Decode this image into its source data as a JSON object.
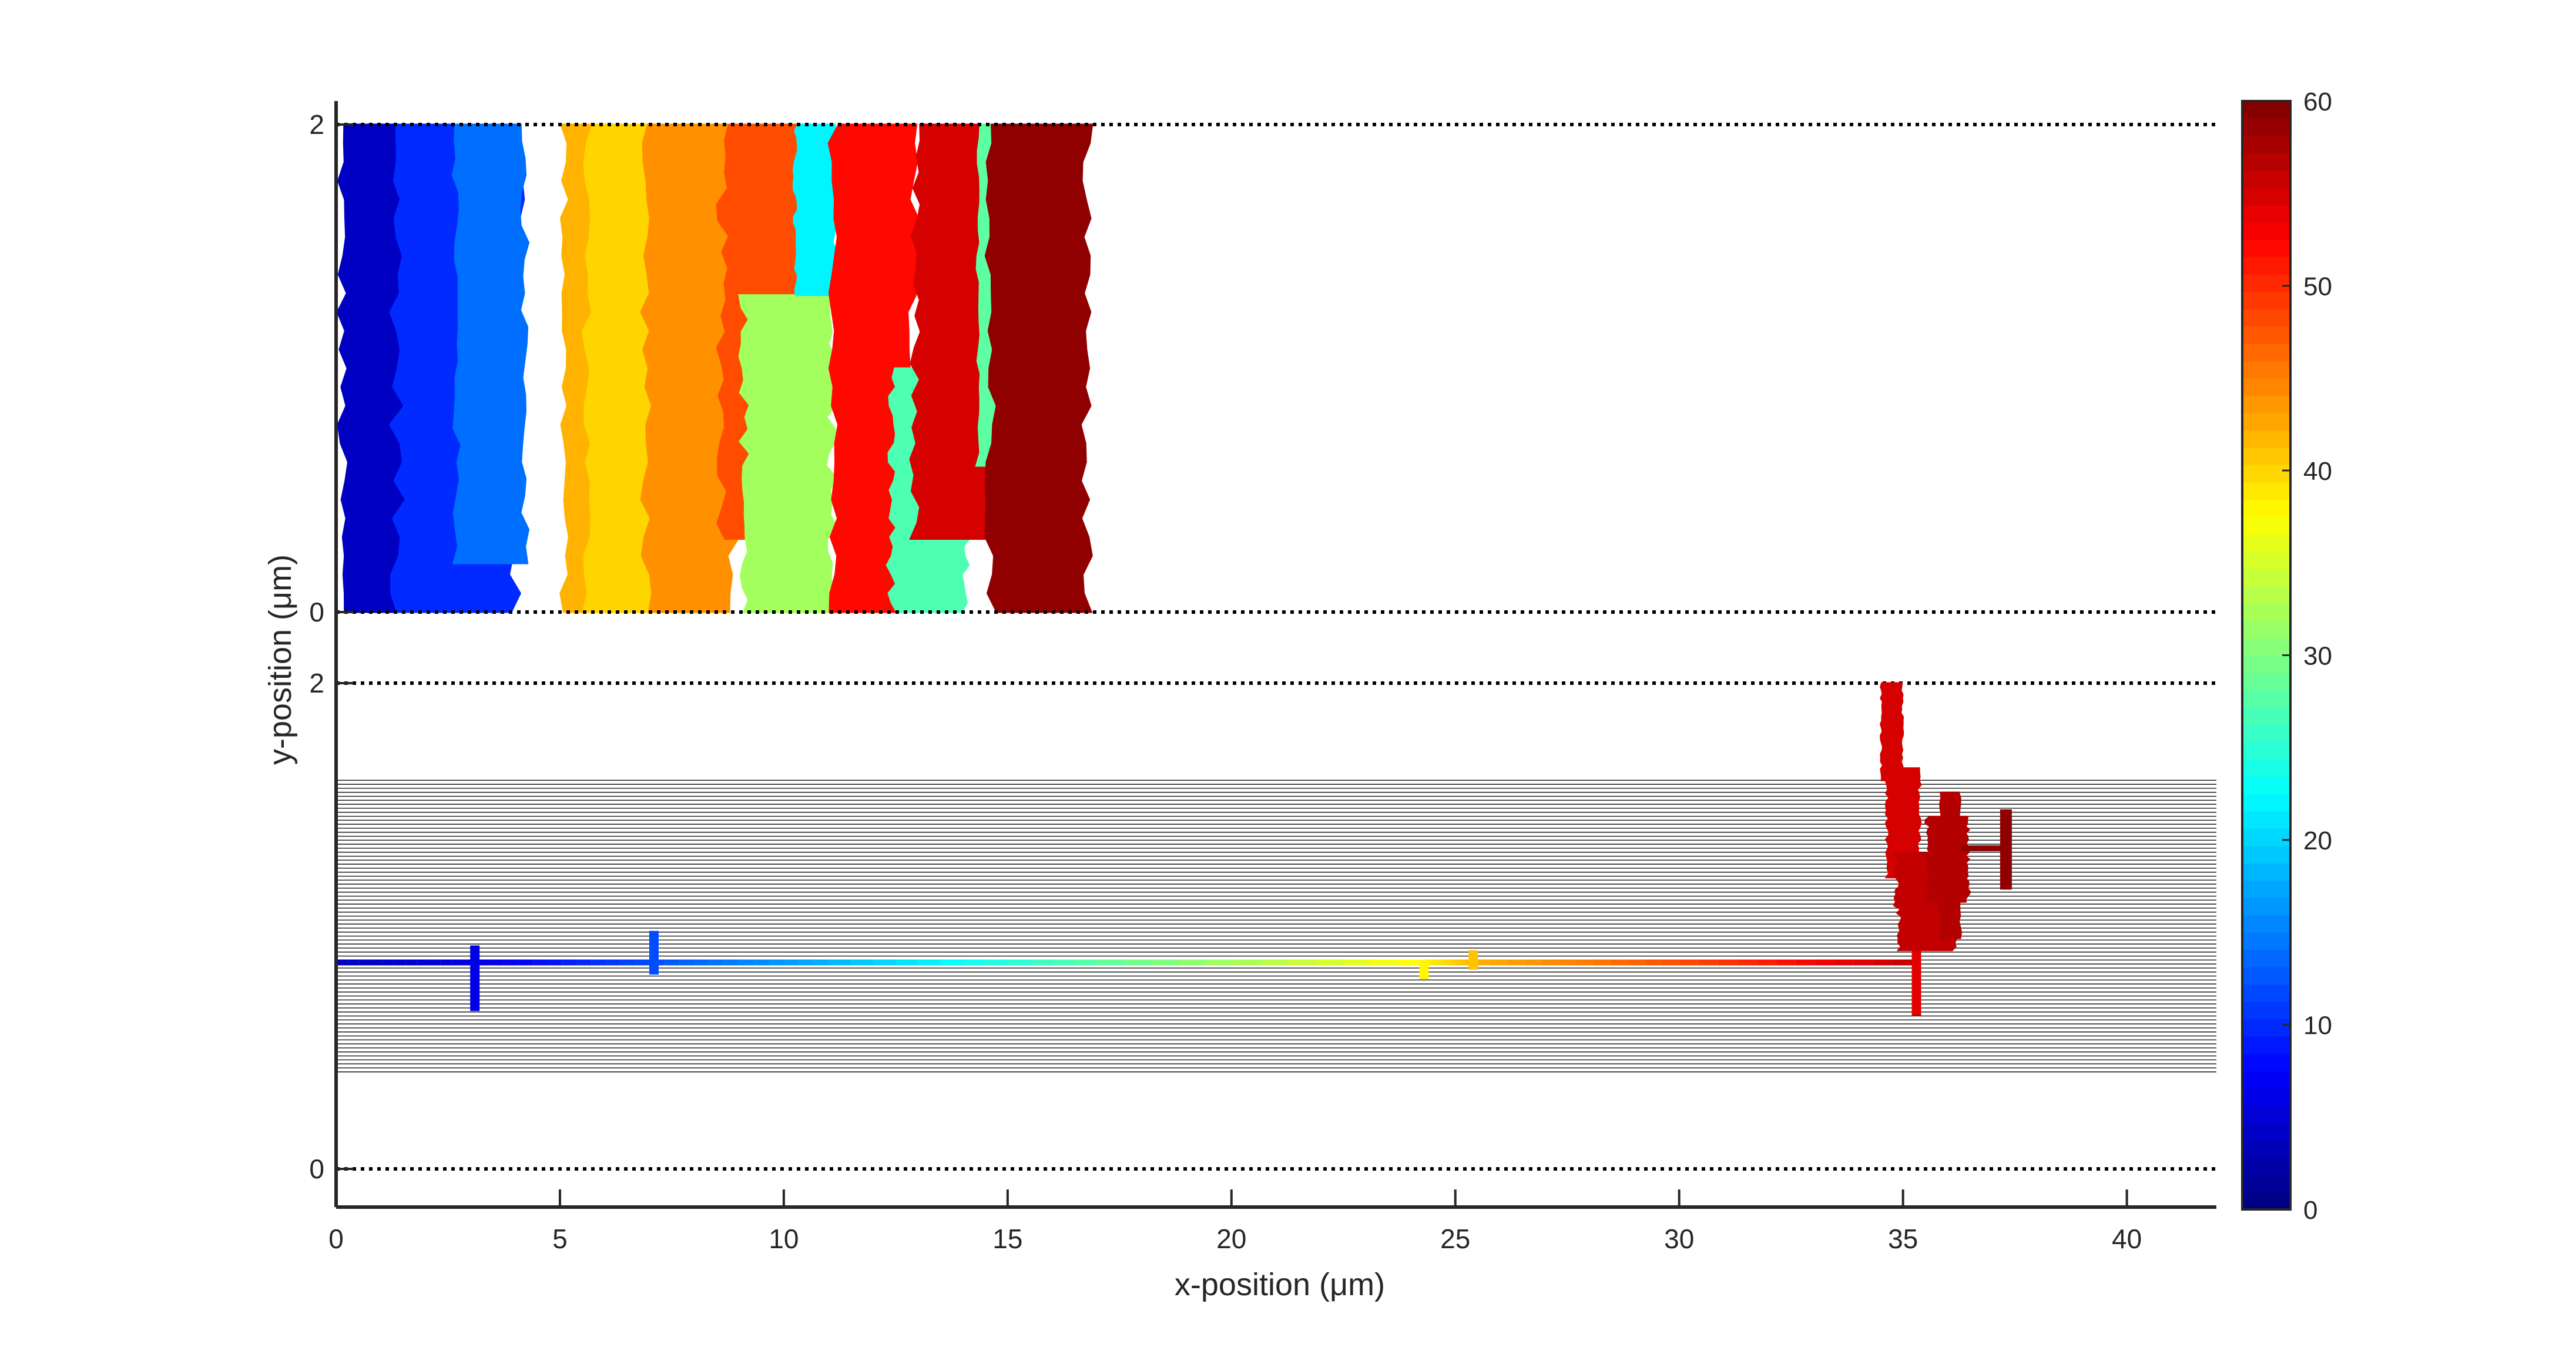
{
  "chart_data": {
    "type": "scatter",
    "xlabel": "x-position (μm)",
    "ylabel": "y-position (μm)",
    "xlim": [
      0,
      42
    ],
    "x_ticks": [
      "0",
      "5",
      "10",
      "15",
      "20",
      "25",
      "30",
      "35",
      "40"
    ],
    "panels": [
      {
        "name": "top",
        "ylim": [
          0,
          2
        ],
        "y_ticks": [
          "0",
          "2"
        ],
        "boundary_lines": [
          0,
          2
        ],
        "clusters": [
          {
            "x_start": 0.0,
            "x_end": 2.3,
            "y_start": 0.0,
            "y_end": 2.0,
            "value": 4
          },
          {
            "x_start": 1.2,
            "x_end": 4.2,
            "y_start": 0.0,
            "y_end": 2.0,
            "value": 10
          },
          {
            "x_start": 2.6,
            "x_end": 4.3,
            "y_start": 0.2,
            "y_end": 2.0,
            "value": 14
          },
          {
            "x_start": 5.0,
            "x_end": 6.8,
            "y_start": 0.0,
            "y_end": 2.0,
            "value": 42
          },
          {
            "x_start": 5.5,
            "x_end": 7.5,
            "y_start": 0.0,
            "y_end": 2.0,
            "value": 40
          },
          {
            "x_start": 6.8,
            "x_end": 9.0,
            "y_start": 0.0,
            "y_end": 2.0,
            "value": 44
          },
          {
            "x_start": 8.5,
            "x_end": 10.8,
            "y_start": 0.3,
            "y_end": 2.0,
            "value": 48
          },
          {
            "x_start": 9.0,
            "x_end": 11.2,
            "y_start": 0.0,
            "y_end": 1.3,
            "value": 32
          },
          {
            "x_start": 10.2,
            "x_end": 11.2,
            "y_start": 1.3,
            "y_end": 2.0,
            "value": 22
          },
          {
            "x_start": 11.0,
            "x_end": 13.0,
            "y_start": 0.0,
            "y_end": 2.0,
            "value": 52
          },
          {
            "x_start": 12.3,
            "x_end": 14.2,
            "y_start": 0.0,
            "y_end": 1.0,
            "value": 27
          },
          {
            "x_start": 12.8,
            "x_end": 15.0,
            "y_start": 0.3,
            "y_end": 2.0,
            "value": 55
          },
          {
            "x_start": 14.3,
            "x_end": 15.1,
            "y_start": 0.6,
            "y_end": 2.0,
            "value": 28
          },
          {
            "x_start": 14.5,
            "x_end": 16.9,
            "y_start": 0.0,
            "y_end": 2.0,
            "value": 59
          }
        ]
      },
      {
        "name": "bottom",
        "ylim": [
          0,
          2
        ],
        "y_ticks": [
          "0",
          "2"
        ],
        "boundary_lines": [
          0,
          2
        ],
        "hatched_band": [
          0.4,
          1.6
        ],
        "track": [
          {
            "x": 0.0,
            "y": 0.85,
            "value": 4
          },
          {
            "x": 3.1,
            "y": 0.85,
            "value": 6
          },
          {
            "x": 7.0,
            "y": 0.85,
            "value": 12
          },
          {
            "x": 11.0,
            "y": 0.85,
            "value": 18
          },
          {
            "x": 17.0,
            "y": 0.85,
            "value": 28
          },
          {
            "x": 24.3,
            "y": 0.85,
            "value": 38
          },
          {
            "x": 25.4,
            "y": 0.85,
            "value": 42
          },
          {
            "x": 30.0,
            "y": 0.85,
            "value": 48
          },
          {
            "x": 35.2,
            "y": 0.85,
            "value": 56
          }
        ],
        "spurs": [
          {
            "x": 3.1,
            "y_min": 0.65,
            "y_max": 0.92,
            "value": 6
          },
          {
            "x": 7.1,
            "y_min": 0.8,
            "y_max": 0.98,
            "value": 12
          },
          {
            "x": 24.3,
            "y_min": 0.78,
            "y_max": 0.86,
            "value": 38
          },
          {
            "x": 25.4,
            "y_min": 0.82,
            "y_max": 0.9,
            "value": 41
          },
          {
            "x": 35.3,
            "y_min": 0.63,
            "y_max": 0.92,
            "value": 54
          }
        ],
        "cluster": [
          {
            "x_start": 34.5,
            "x_end": 35.0,
            "y_start": 1.6,
            "y_end": 2.0,
            "value": 55
          },
          {
            "x_start": 34.6,
            "x_end": 35.4,
            "y_start": 1.2,
            "y_end": 1.65,
            "value": 55
          },
          {
            "x_start": 34.8,
            "x_end": 36.2,
            "y_start": 0.9,
            "y_end": 1.3,
            "value": 56
          },
          {
            "x_start": 35.8,
            "x_end": 36.3,
            "y_start": 0.95,
            "y_end": 1.55,
            "value": 57
          },
          {
            "x_start": 35.5,
            "x_end": 36.5,
            "y_start": 1.1,
            "y_end": 1.45,
            "value": 57
          }
        ],
        "branch": {
          "x_start": 36.3,
          "x_end": 37.4,
          "y": 1.32,
          "value": 59
        },
        "branch_tip": {
          "x": 37.3,
          "y_min": 1.15,
          "y_max": 1.48,
          "value": 59
        }
      }
    ],
    "colorbar": {
      "colormap": "jet",
      "range": [
        0,
        60
      ],
      "ticks": [
        "0",
        "10",
        "20",
        "30",
        "40",
        "50",
        "60"
      ]
    }
  }
}
